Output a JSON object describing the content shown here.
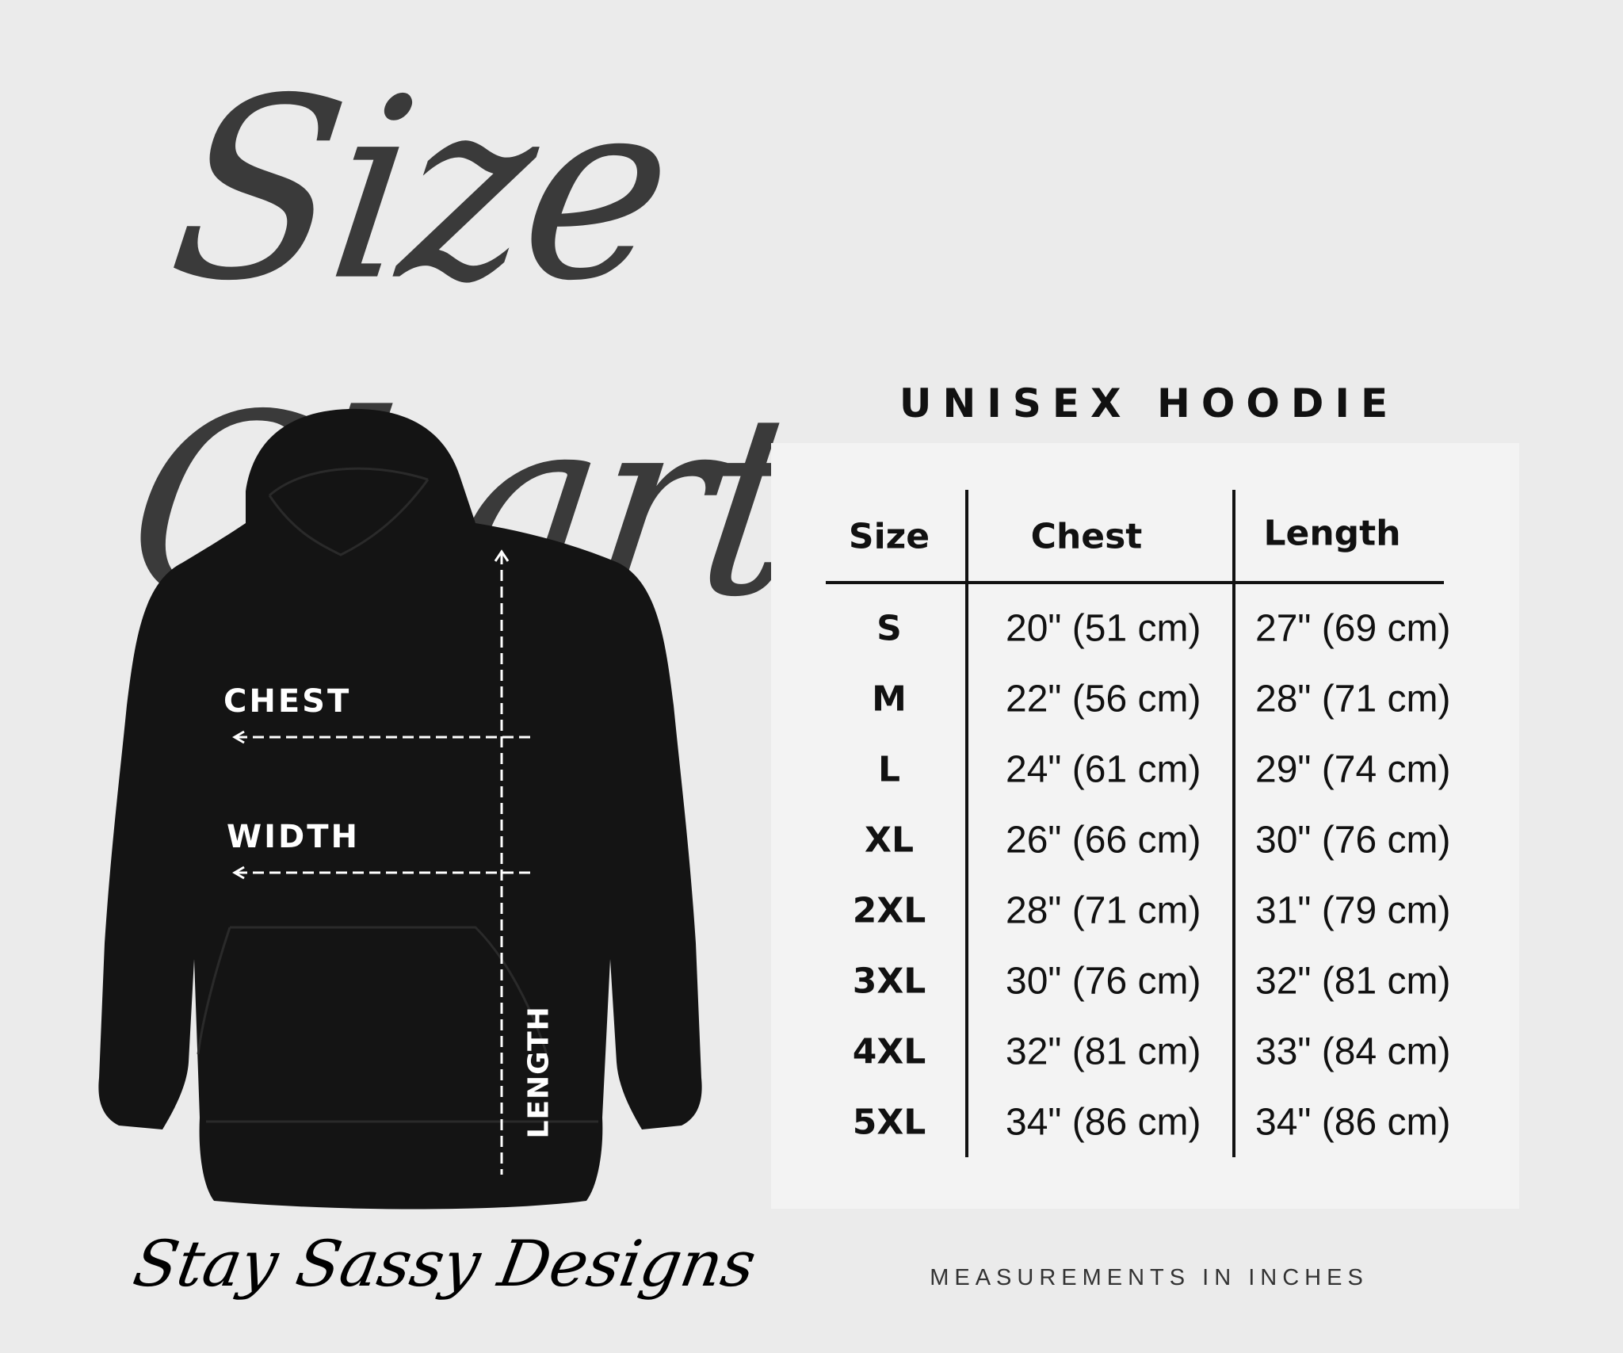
{
  "title": "Size Chart",
  "subtitle": "UNISEX HOODIE",
  "diagram": {
    "chest_label": "CHEST",
    "width_label": "WIDTH",
    "length_label": "LENGTH",
    "garment_color": "#141414"
  },
  "table": {
    "headers": [
      "Size",
      "Chest",
      "Length"
    ],
    "rows": [
      {
        "size": "S",
        "chest": "20\" (51 cm)",
        "length": "27\" (69 cm)"
      },
      {
        "size": "M",
        "chest": "22\" (56 cm)",
        "length": "28\" (71 cm)"
      },
      {
        "size": "L",
        "chest": "24\" (61 cm)",
        "length": "29\" (74 cm)"
      },
      {
        "size": "XL",
        "chest": "26\" (66 cm)",
        "length": "30\" (76 cm)"
      },
      {
        "size": "2XL",
        "chest": "28\" (71 cm)",
        "length": "31\" (79 cm)"
      },
      {
        "size": "3XL",
        "chest": "30\" (76 cm)",
        "length": "32\" (81 cm)"
      },
      {
        "size": "4XL",
        "chest": "32\" (81 cm)",
        "length": "33\" (84 cm)"
      },
      {
        "size": "5XL",
        "chest": "34\" (86 cm)",
        "length": "34\" (86 cm)"
      }
    ]
  },
  "footer": "MEASUREMENTS IN INCHES",
  "brand": "Stay Sassy Designs"
}
